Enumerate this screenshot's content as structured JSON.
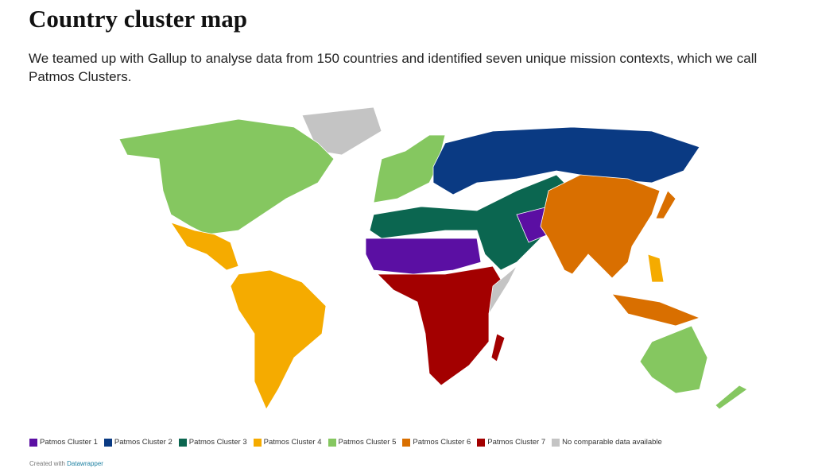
{
  "header": {
    "title": "Country cluster map",
    "subtitle": "We teamed up with Gallup to analyse data from 150 countries and identified seven unique mission contexts, which we call Patmos Clusters."
  },
  "legend": [
    {
      "label": "Patmos Cluster 1",
      "color": "#5b0fa3"
    },
    {
      "label": "Patmos Cluster 2",
      "color": "#0a3a83"
    },
    {
      "label": "Patmos Cluster 3",
      "color": "#0b6650"
    },
    {
      "label": "Patmos Cluster 4",
      "color": "#f5ab00"
    },
    {
      "label": "Patmos Cluster 5",
      "color": "#85c760"
    },
    {
      "label": "Patmos Cluster 6",
      "color": "#d96f00"
    },
    {
      "label": "Patmos Cluster 7",
      "color": "#a30000"
    },
    {
      "label": "No comparable data available",
      "color": "#c4c4c4"
    }
  ],
  "footer": {
    "text": "Created with",
    "link": "Datawrapper"
  }
}
